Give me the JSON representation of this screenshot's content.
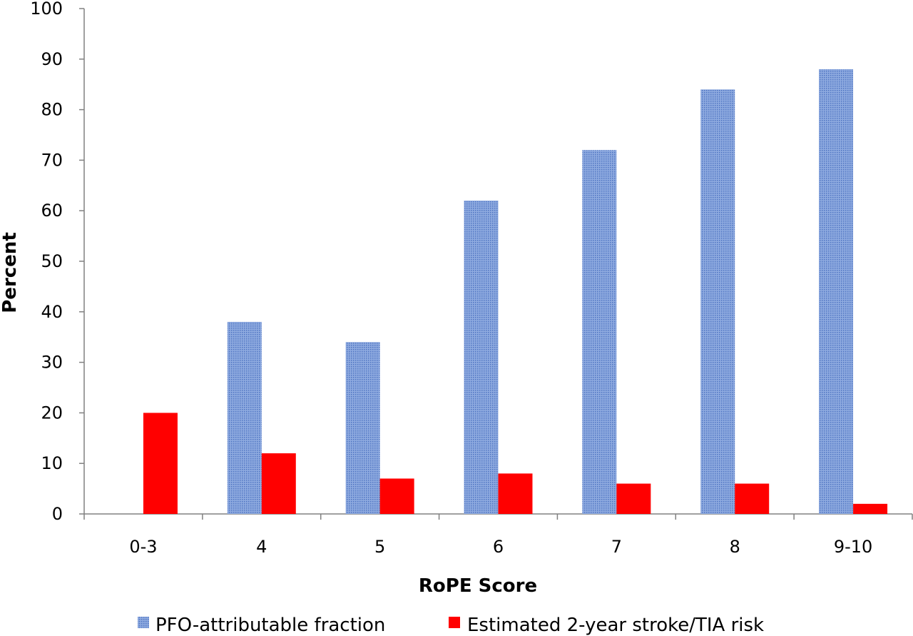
{
  "chart_data": {
    "type": "bar",
    "categories": [
      "0-3",
      "4",
      "5",
      "6",
      "7",
      "8",
      "9-10"
    ],
    "series": [
      {
        "name": "PFO-attributable fraction",
        "values": [
          0,
          38,
          34,
          62,
          72,
          84,
          88
        ],
        "color": "#7a9ad4",
        "pattern": "dotted"
      },
      {
        "name": "Estimated 2-year stroke/TIA risk",
        "values": [
          20,
          12,
          7,
          8,
          6,
          6,
          2
        ],
        "color": "#ff0000"
      }
    ],
    "xlabel": "RoPE Score",
    "ylabel": "Percent",
    "ylim": [
      0,
      100
    ],
    "yticks": [
      0,
      10,
      20,
      30,
      40,
      50,
      60,
      70,
      80,
      90,
      100
    ],
    "grid": false,
    "legend_position": "bottom"
  }
}
